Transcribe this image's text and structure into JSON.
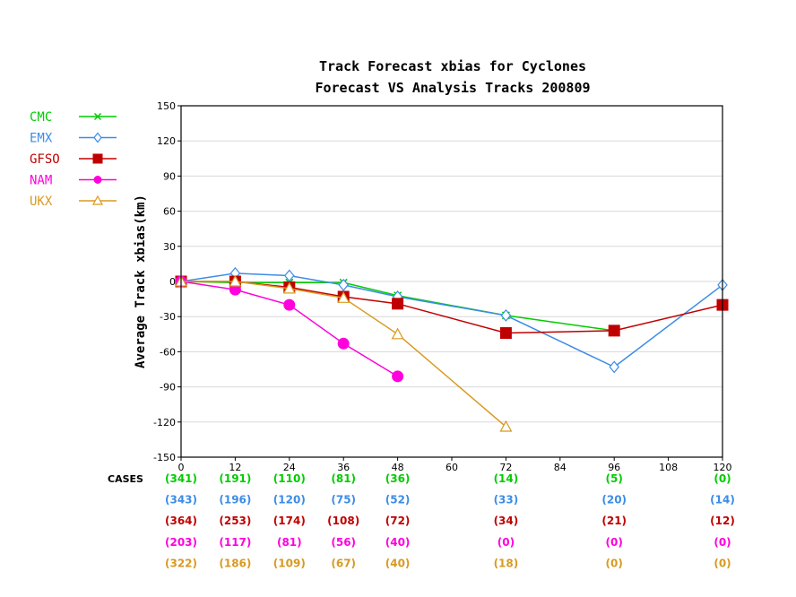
{
  "chart_data": {
    "type": "line",
    "title": "Track Forecast xbias for Cyclones",
    "subtitle": "Forecast VS Analysis Tracks 200809",
    "ylabel": "Average Track xbias(km)",
    "xlabel": "",
    "xlim": [
      0,
      120
    ],
    "ylim": [
      -150,
      150
    ],
    "xticks": [
      0,
      12,
      24,
      36,
      48,
      60,
      72,
      84,
      96,
      108,
      120
    ],
    "yticks": [
      150,
      120,
      90,
      60,
      30,
      0,
      -30,
      -60,
      -90,
      -120,
      -150
    ],
    "grid": true,
    "legend_position": "top-left, outside plot",
    "cases_label": "CASES",
    "series": [
      {
        "name": "CMC",
        "color": "#00cc00",
        "marker": "x-cross",
        "filled": false,
        "x": [
          0,
          12,
          24,
          36,
          48,
          72,
          96
        ],
        "y": [
          0,
          -1,
          -1,
          -1,
          -12,
          -29,
          -42
        ],
        "case_x": [
          0,
          12,
          24,
          36,
          48,
          72,
          96,
          120
        ],
        "cases": [
          "(341)",
          "(191)",
          "(110)",
          "(81)",
          "(36)",
          "(14)",
          "(5)",
          "(0)"
        ]
      },
      {
        "name": "EMX",
        "color": "#3c8ce6",
        "marker": "diamond",
        "filled": false,
        "x": [
          0,
          12,
          24,
          36,
          48,
          72,
          96,
          120
        ],
        "y": [
          0,
          7,
          5,
          -3,
          -13,
          -29,
          -73,
          -3
        ],
        "case_x": [
          0,
          12,
          24,
          36,
          48,
          72,
          96,
          120
        ],
        "cases": [
          "(343)",
          "(196)",
          "(120)",
          "(75)",
          "(52)",
          "(33)",
          "(20)",
          "(14)"
        ]
      },
      {
        "name": "GFSO",
        "color": "#c00000",
        "marker": "square",
        "filled": true,
        "x": [
          0,
          12,
          24,
          36,
          48,
          72,
          96,
          120
        ],
        "y": [
          0,
          0,
          -5,
          -13,
          -19,
          -44,
          -42,
          -20
        ],
        "case_x": [
          0,
          12,
          24,
          36,
          48,
          72,
          96,
          120
        ],
        "cases": [
          "(364)",
          "(253)",
          "(174)",
          "(108)",
          "(72)",
          "(34)",
          "(21)",
          "(12)"
        ]
      },
      {
        "name": "NAM",
        "color": "#ff00dd",
        "marker": "circle",
        "filled": true,
        "x": [
          0,
          12,
          24,
          36,
          48
        ],
        "y": [
          0,
          -7,
          -20,
          -53,
          -81
        ],
        "case_x": [
          0,
          12,
          24,
          36,
          48,
          72,
          96,
          120
        ],
        "cases": [
          "(203)",
          "(117)",
          "(81)",
          "(56)",
          "(40)",
          "(0)",
          "(0)",
          "(0)"
        ]
      },
      {
        "name": "UKX",
        "color": "#d89a20",
        "marker": "triangle",
        "filled": false,
        "x": [
          0,
          12,
          24,
          36,
          48,
          72
        ],
        "y": [
          0,
          0,
          -6,
          -14,
          -45,
          -124
        ],
        "case_x": [
          0,
          12,
          24,
          36,
          48,
          72,
          96,
          120
        ],
        "cases": [
          "(322)",
          "(186)",
          "(109)",
          "(67)",
          "(40)",
          "(18)",
          "(0)",
          "(0)"
        ]
      }
    ]
  }
}
